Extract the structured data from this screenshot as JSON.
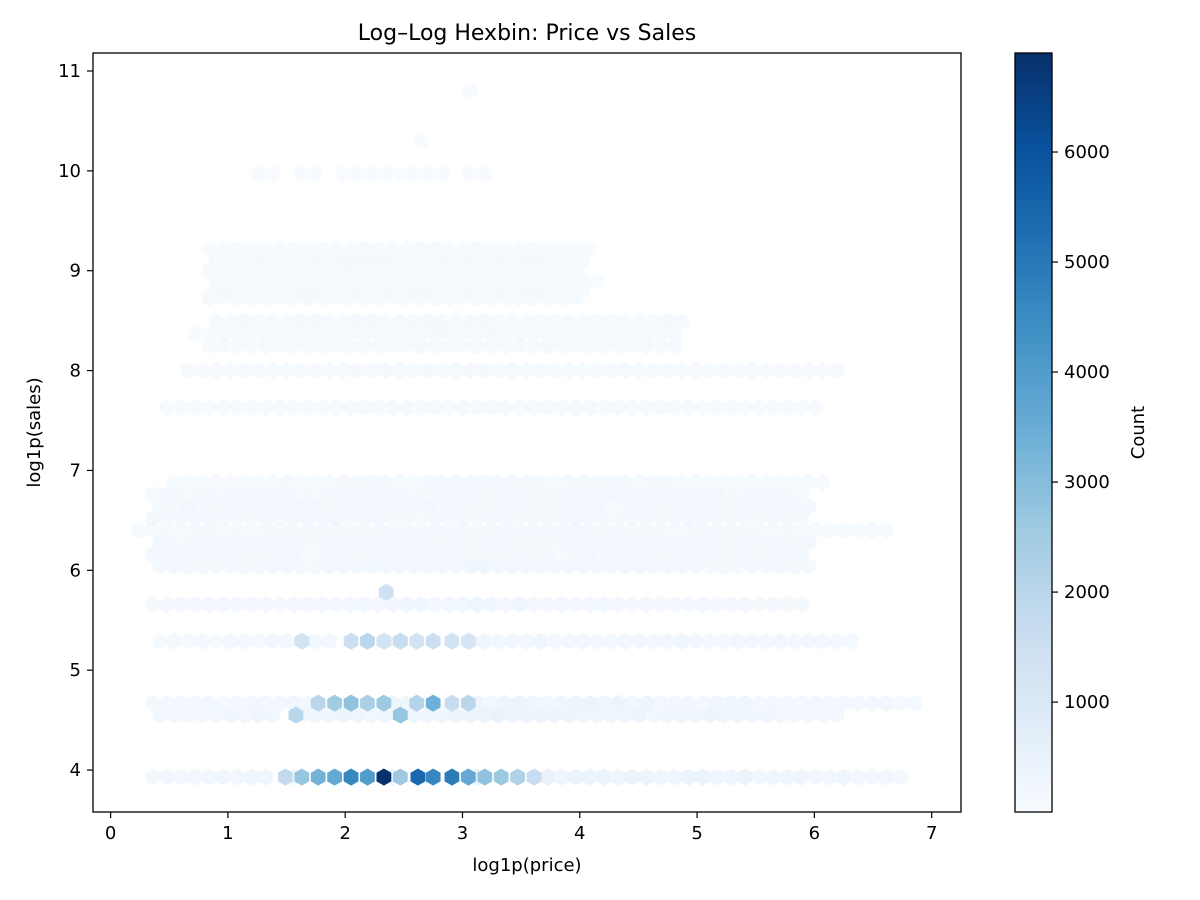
{
  "chart_data": {
    "type": "heatmap",
    "subtype": "hexbin",
    "title": "Log–Log Hexbin: Price vs Sales",
    "xlabel": "log1p(price)",
    "ylabel": "log1p(sales)",
    "xlim": [
      -0.15,
      7.25
    ],
    "ylim": [
      3.58,
      11.18
    ],
    "x_ticks": [
      0,
      1,
      2,
      3,
      4,
      5,
      6,
      7
    ],
    "y_ticks": [
      4,
      5,
      6,
      7,
      8,
      9,
      10,
      11
    ],
    "colormap": "Blues",
    "colorbar": {
      "label": "Count",
      "min": 1,
      "max": 6900,
      "ticks": [
        1000,
        2000,
        3000,
        4000,
        5000,
        6000
      ]
    },
    "grid": false,
    "bands": [
      {
        "y": 3.93,
        "x_min": 0.3,
        "x_max": 6.8,
        "base_count": 400
      },
      {
        "y": 4.55,
        "x_min": 0.35,
        "x_max": 6.3,
        "base_count": 350
      },
      {
        "y": 4.67,
        "x_min": 0.3,
        "x_max": 6.9,
        "base_count": 300
      },
      {
        "y": 5.29,
        "x_min": 0.25,
        "x_max": 6.4,
        "base_count": 250
      },
      {
        "y": 5.66,
        "x_min": 0.3,
        "x_max": 5.9,
        "base_count": 220
      },
      {
        "y": 6.04,
        "x_min": 0.25,
        "x_max": 6.0,
        "base_count": 200
      },
      {
        "y": 6.4,
        "x_min": 0.2,
        "x_max": 6.7,
        "base_count": 130
      },
      {
        "y": 6.88,
        "x_min": 0.45,
        "x_max": 6.1,
        "base_count": 110
      },
      {
        "y": 7.63,
        "x_min": 0.45,
        "x_max": 6.1,
        "base_count": 90
      },
      {
        "y": 8.0,
        "x_min": 0.55,
        "x_max": 6.2,
        "base_count": 80
      },
      {
        "y": 8.37,
        "x_min": 0.7,
        "x_max": 4.9,
        "base_count": 70
      },
      {
        "y": 8.9,
        "x_min": 0.75,
        "x_max": 4.2,
        "base_count": 50
      },
      {
        "y": 9.22,
        "x_min": 0.75,
        "x_max": 4.2,
        "base_count": 40
      },
      {
        "y": 9.97,
        "x_min": 1.2,
        "x_max": 3.3,
        "base_count": 15
      },
      {
        "y": 10.3,
        "x_min": 2.35,
        "x_max": 2.75,
        "base_count": 10
      },
      {
        "y": 10.8,
        "x_min": 2.7,
        "x_max": 3.15,
        "base_count": 8
      }
    ],
    "hotspots": [
      {
        "x": 2.33,
        "y": 3.93,
        "count": 6900
      },
      {
        "x": 2.62,
        "y": 3.93,
        "count": 5400
      },
      {
        "x": 2.75,
        "y": 3.93,
        "count": 4600
      },
      {
        "x": 2.91,
        "y": 3.93,
        "count": 4900
      },
      {
        "x": 2.05,
        "y": 3.93,
        "count": 4600
      },
      {
        "x": 2.19,
        "y": 3.93,
        "count": 4000
      },
      {
        "x": 1.91,
        "y": 3.93,
        "count": 3600
      },
      {
        "x": 1.77,
        "y": 3.93,
        "count": 3300
      },
      {
        "x": 1.63,
        "y": 3.93,
        "count": 2700
      },
      {
        "x": 3.05,
        "y": 3.93,
        "count": 3600
      },
      {
        "x": 3.19,
        "y": 3.93,
        "count": 2800
      },
      {
        "x": 3.33,
        "y": 3.93,
        "count": 2600
      },
      {
        "x": 3.47,
        "y": 3.93,
        "count": 2200
      },
      {
        "x": 2.47,
        "y": 3.93,
        "count": 2600
      },
      {
        "x": 1.49,
        "y": 3.93,
        "count": 1800
      },
      {
        "x": 3.61,
        "y": 3.93,
        "count": 1600
      },
      {
        "x": 2.75,
        "y": 4.67,
        "count": 3400
      },
      {
        "x": 2.05,
        "y": 4.67,
        "count": 2800
      },
      {
        "x": 2.33,
        "y": 4.67,
        "count": 2600
      },
      {
        "x": 1.91,
        "y": 4.67,
        "count": 2500
      },
      {
        "x": 2.19,
        "y": 4.67,
        "count": 2300
      },
      {
        "x": 1.77,
        "y": 4.67,
        "count": 2000
      },
      {
        "x": 2.61,
        "y": 4.67,
        "count": 2100
      },
      {
        "x": 3.05,
        "y": 4.67,
        "count": 2000
      },
      {
        "x": 2.91,
        "y": 4.67,
        "count": 1600
      },
      {
        "x": 2.47,
        "y": 4.55,
        "count": 2700
      },
      {
        "x": 1.58,
        "y": 4.55,
        "count": 2000
      },
      {
        "x": 2.19,
        "y": 5.29,
        "count": 2000
      },
      {
        "x": 2.47,
        "y": 5.29,
        "count": 1600
      },
      {
        "x": 2.05,
        "y": 5.29,
        "count": 1500
      },
      {
        "x": 2.75,
        "y": 5.29,
        "count": 1500
      },
      {
        "x": 1.63,
        "y": 5.29,
        "count": 1300
      },
      {
        "x": 2.33,
        "y": 5.29,
        "count": 1300
      },
      {
        "x": 2.61,
        "y": 5.29,
        "count": 1300
      },
      {
        "x": 2.91,
        "y": 5.29,
        "count": 1300
      },
      {
        "x": 3.05,
        "y": 5.29,
        "count": 1200
      },
      {
        "x": 2.35,
        "y": 5.78,
        "count": 1400
      }
    ]
  }
}
